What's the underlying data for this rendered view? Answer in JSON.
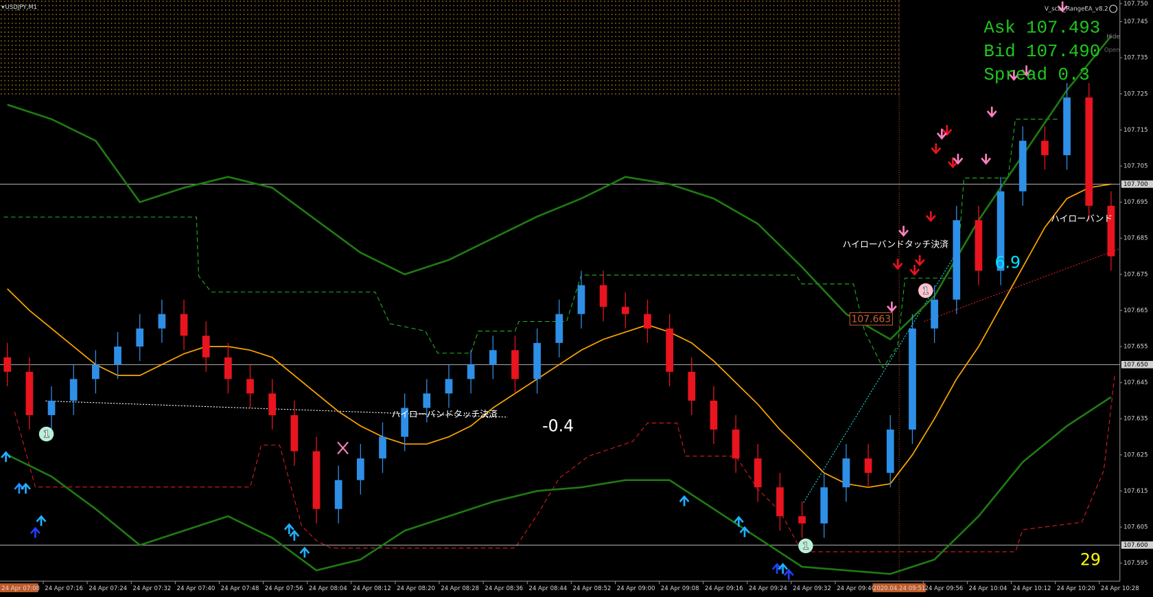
{
  "window": {
    "symbol": "USDJPY,M1",
    "ea_name": "V_scal_RangeEA_v8.2",
    "hide_button": "Hide",
    "open_button": "Open"
  },
  "info": {
    "ask": "Ask 107.493",
    "bid": "Bid 107.490",
    "spread": "Spread 0.3"
  },
  "chart_data": {
    "type": "candlestick",
    "open": [
      107.652,
      107.648,
      107.636,
      107.64,
      107.646,
      107.65,
      107.655,
      107.66,
      107.664,
      107.658,
      107.652,
      107.646,
      107.642,
      107.636,
      107.626,
      107.61,
      107.618,
      107.624,
      107.63,
      107.638,
      107.642,
      107.646,
      107.65,
      107.654,
      107.646,
      107.656,
      107.664,
      107.672,
      107.666,
      107.664,
      107.66,
      107.648,
      107.64,
      107.632,
      107.624,
      107.616,
      107.608,
      107.606,
      107.616,
      107.624,
      107.62,
      107.632,
      107.66,
      107.668,
      107.69,
      107.676,
      107.698,
      107.712,
      107.708,
      107.724,
      107.694
    ],
    "high": [
      107.656,
      107.652,
      107.644,
      107.65,
      107.654,
      107.659,
      107.664,
      107.668,
      107.668,
      107.662,
      107.656,
      107.65,
      107.646,
      107.64,
      107.63,
      107.622,
      107.628,
      107.634,
      107.642,
      107.646,
      107.65,
      107.654,
      107.658,
      107.658,
      107.66,
      107.668,
      107.676,
      107.676,
      107.67,
      107.668,
      107.664,
      107.652,
      107.644,
      107.636,
      107.628,
      107.62,
      107.612,
      107.62,
      107.628,
      107.628,
      107.636,
      107.664,
      107.672,
      107.694,
      107.694,
      107.702,
      107.716,
      107.716,
      107.728,
      107.728,
      107.698
    ],
    "low": [
      107.644,
      107.632,
      107.632,
      107.636,
      107.642,
      107.646,
      107.651,
      107.656,
      107.654,
      107.648,
      107.642,
      107.638,
      107.632,
      107.622,
      107.606,
      107.606,
      107.614,
      107.62,
      107.626,
      107.634,
      107.638,
      107.642,
      107.646,
      107.642,
      107.642,
      107.652,
      107.66,
      107.662,
      107.66,
      107.656,
      107.644,
      107.636,
      107.628,
      107.62,
      107.612,
      107.604,
      107.602,
      107.602,
      107.612,
      107.616,
      107.616,
      107.628,
      107.656,
      107.664,
      107.672,
      107.672,
      107.694,
      107.704,
      107.704,
      107.69,
      107.676
    ],
    "close": [
      107.648,
      107.636,
      107.64,
      107.646,
      107.65,
      107.655,
      107.66,
      107.664,
      107.658,
      107.652,
      107.646,
      107.642,
      107.636,
      107.626,
      107.61,
      107.618,
      107.624,
      107.63,
      107.638,
      107.642,
      107.646,
      107.65,
      107.654,
      107.646,
      107.656,
      107.664,
      107.672,
      107.666,
      107.664,
      107.66,
      107.648,
      107.64,
      107.632,
      107.624,
      107.616,
      107.608,
      107.606,
      107.616,
      107.624,
      107.62,
      107.632,
      107.66,
      107.668,
      107.69,
      107.676,
      107.698,
      107.712,
      107.708,
      107.724,
      107.694,
      107.68
    ],
    "up_color": "#2e8fe6",
    "down_color": "#e8141e",
    "moving_average": {
      "color": "#ffa500",
      "values": [
        107.671,
        107.665,
        107.66,
        107.655,
        107.65,
        107.647,
        107.647,
        107.65,
        107.653,
        107.655,
        107.655,
        107.654,
        107.652,
        107.647,
        107.642,
        107.637,
        107.633,
        107.63,
        107.628,
        107.628,
        107.63,
        107.633,
        107.638,
        107.642,
        107.646,
        107.65,
        107.654,
        107.657,
        107.659,
        107.661,
        107.659,
        107.656,
        107.651,
        107.645,
        107.639,
        107.632,
        107.626,
        107.62,
        107.617,
        107.616,
        107.617,
        107.625,
        107.635,
        107.646,
        107.655,
        107.666,
        107.677,
        107.688,
        107.696,
        107.699,
        107.7
      ]
    },
    "bands": [
      {
        "color": "#1f7a12",
        "values": [
          107.722,
          107.718,
          107.712,
          107.695,
          107.699,
          107.702,
          107.699,
          107.69,
          107.681,
          107.675,
          107.679,
          107.685,
          107.691,
          107.696,
          107.702,
          107.7,
          107.696,
          107.689,
          107.677,
          107.664,
          107.657,
          107.669,
          107.69,
          107.708,
          107.726,
          107.741
        ]
      },
      {
        "color": "#1f7a12",
        "values": [
          107.625,
          107.619,
          107.61,
          107.6,
          107.604,
          107.608,
          107.602,
          107.593,
          107.596,
          107.604,
          107.608,
          107.612,
          107.615,
          107.616,
          107.618,
          107.618,
          107.61,
          107.602,
          107.594,
          107.593,
          107.592,
          107.596,
          107.608,
          107.623,
          107.633,
          107.641
        ]
      }
    ],
    "ylim": [
      107.59,
      107.751
    ],
    "yticks": [
      {
        "value": 107.75,
        "label": "107.750"
      },
      107.745,
      107.735,
      107.725,
      107.715,
      107.705,
      107.695,
      107.685,
      107.675,
      107.665,
      107.655,
      107.645,
      107.635,
      107.625,
      107.615,
      107.605,
      107.595
    ],
    "levels": {
      "color": "#d0d0d0",
      "lines": [
        {
          "value": 107.7,
          "label": "107.700"
        },
        {
          "value": 107.65,
          "label": "107.650"
        },
        {
          "value": 107.6,
          "label": "107.600"
        }
      ]
    },
    "x_labels": [
      "24 Apr 07:08",
      "24 Apr 07:16",
      "24 Apr 07:24",
      "24 Apr 07:32",
      "24 Apr 07:40",
      "24 Apr 07:48",
      "24 Apr 07:56",
      "24 Apr 08:04",
      "24 Apr 08:12",
      "24 Apr 08:20",
      "24 Apr 08:28",
      "24 Apr 08:36",
      "24 Apr 08:44",
      "24 Apr 08:52",
      "24 Apr 09:00",
      "24 Apr 09:08",
      "24 Apr 09:16",
      "24 Apr 09:24",
      "24 Apr 09:32",
      "24 Apr 09:40",
      "24 Apr 09:56",
      "24 Apr 10:04",
      "24 Apr 10:12",
      "24 Apr 10:20",
      "24 Apr 10:28"
    ],
    "cursor": {
      "time_label": "2020.04.24 09:51",
      "price_label": "107.663"
    },
    "annotations": [
      {
        "text": "ハイローバンドタッチ決済",
        "color": "#ffffff"
      },
      {
        "text": "ハイローバンドタッチ決済",
        "color": "#ffffff"
      },
      {
        "text": "ハイローバンド",
        "color": "#ffffff"
      },
      {
        "text": "-0.4",
        "color": "#ffffff"
      },
      {
        "text": "6.9",
        "color": "#00e5ff"
      },
      {
        "text": "29",
        "color": "#ffff00"
      }
    ],
    "markers": [
      {
        "label": "1",
        "color": "#b8f0d8"
      },
      {
        "label": "1",
        "color": "#b8f0d8"
      },
      {
        "label": "1",
        "color": "#ffc0d0"
      }
    ]
  }
}
